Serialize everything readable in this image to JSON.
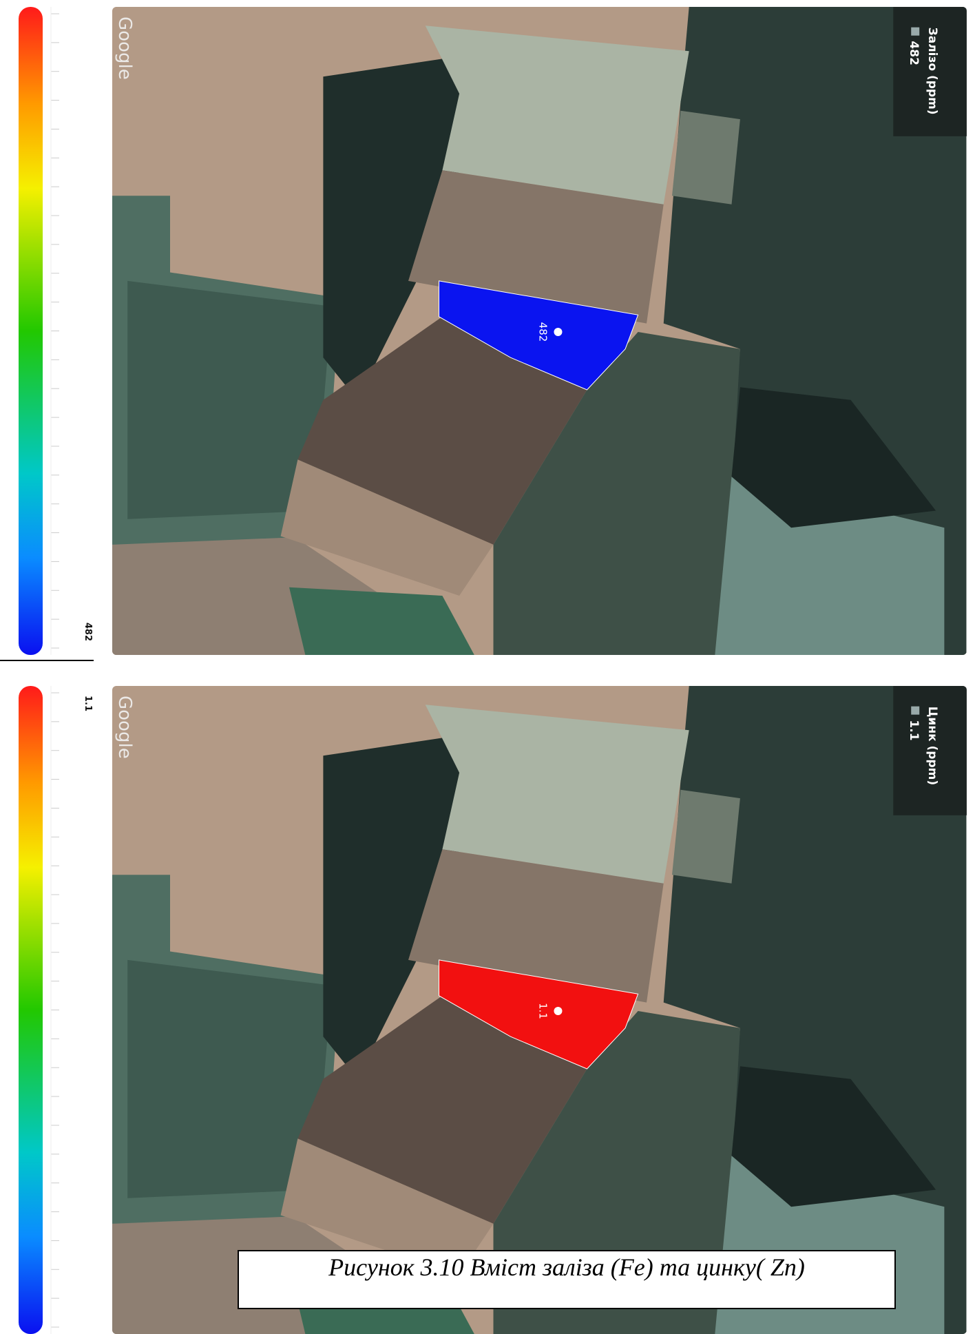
{
  "panels": [
    {
      "map_label": "Google",
      "legend_title": "Залізо (ppm)",
      "value": 482,
      "color": "#0a14f0"
    },
    {
      "map_label": "Google",
      "legend_title": "Цинк (ppm)",
      "value": 1.1,
      "color": "#f21010"
    }
  ],
  "caption": "Рисунок 3.10 Вміст заліза (Fe) та цинку( Zn)"
}
